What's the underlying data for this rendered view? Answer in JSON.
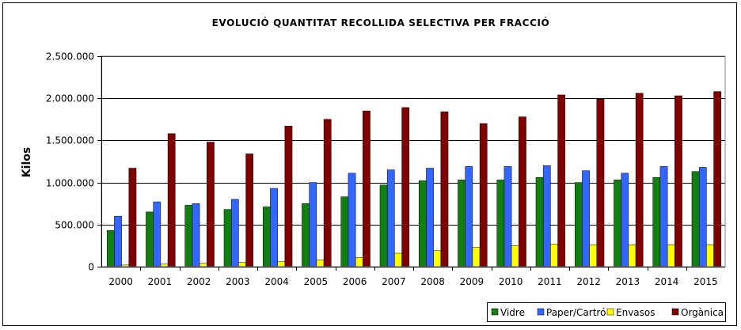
{
  "chart_data": {
    "type": "bar",
    "title": "EVOLUCIÓ QUANTITAT RECOLLIDA SELECTIVA PER FRACCIÓ",
    "xlabel": "",
    "ylabel": "Kilos",
    "ylim": [
      0,
      2500000
    ],
    "yticks": [
      0,
      500000,
      1000000,
      1500000,
      2000000,
      2500000
    ],
    "ytick_labels": [
      "0",
      "500.000",
      "1.000.000",
      "1.500.000",
      "2.000.000",
      "2.500.000"
    ],
    "grid": true,
    "legend_position": "bottom-right",
    "categories": [
      "2000",
      "2001",
      "2002",
      "2003",
      "2004",
      "2005",
      "2006",
      "2007",
      "2008",
      "2009",
      "2010",
      "2011",
      "2012",
      "2013",
      "2014",
      "2015"
    ],
    "series": [
      {
        "name": "Vidre",
        "color": "#118011",
        "values": [
          430000,
          650000,
          730000,
          680000,
          710000,
          750000,
          830000,
          970000,
          1020000,
          1030000,
          1030000,
          1060000,
          1000000,
          1030000,
          1060000,
          1130000
        ]
      },
      {
        "name": "Paper/Cartró",
        "color": "#3366FF",
        "values": [
          600000,
          770000,
          750000,
          800000,
          930000,
          1000000,
          1110000,
          1150000,
          1170000,
          1190000,
          1190000,
          1200000,
          1140000,
          1110000,
          1190000,
          1180000
        ]
      },
      {
        "name": "Envasos",
        "color": "#FFFF00",
        "values": [
          20000,
          30000,
          40000,
          50000,
          60000,
          80000,
          110000,
          160000,
          190000,
          230000,
          250000,
          270000,
          260000,
          260000,
          260000,
          260000
        ]
      },
      {
        "name": "Orgànica",
        "color": "#800000",
        "values": [
          1170000,
          1580000,
          1480000,
          1340000,
          1670000,
          1750000,
          1850000,
          1890000,
          1840000,
          1700000,
          1780000,
          2040000,
          1990000,
          2060000,
          2030000,
          2080000
        ]
      }
    ]
  }
}
